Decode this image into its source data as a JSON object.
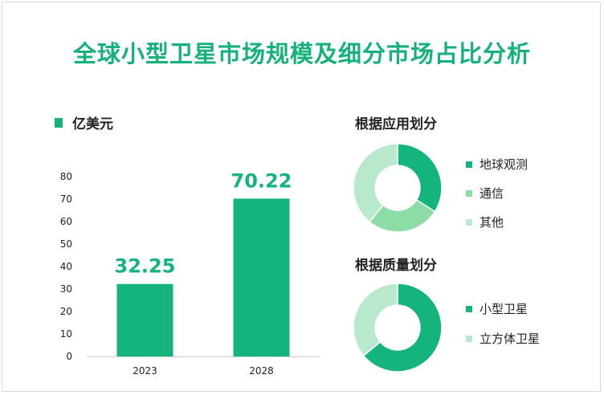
{
  "title": "全球小型卫星市场规模及细分市场占比分析",
  "unit_label": "亿美元",
  "colors": {
    "title": "#14b27a",
    "bar": "#14b47c",
    "pie_dark": "#14b47c",
    "pie_mid": "#8bdca5",
    "pie_light": "#b9e9cc"
  },
  "chart_data": [
    {
      "type": "bar",
      "categories": [
        "2023",
        "2028"
      ],
      "values": [
        32.25,
        70.22
      ],
      "value_labels": [
        "32.25",
        "70.22"
      ],
      "ylim": [
        0,
        80
      ],
      "yticks": [
        "0",
        "10",
        "20",
        "30",
        "40",
        "50",
        "60",
        "70",
        "80"
      ],
      "grid": false
    },
    {
      "type": "pie",
      "title": "根据应用划分",
      "labels": [
        "地球观测",
        "通信",
        "其他"
      ],
      "values": [
        34,
        27,
        39
      ],
      "colors": [
        "#14b47c",
        "#8bdca5",
        "#b9e9cc"
      ],
      "donut": true,
      "legend": "right"
    },
    {
      "type": "pie",
      "title": "根据质量划分",
      "labels": [
        "小型卫星",
        "立方体卫星"
      ],
      "values": [
        64,
        36
      ],
      "colors": [
        "#14b47c",
        "#b9e9cc"
      ],
      "donut": true,
      "legend": "right"
    }
  ]
}
